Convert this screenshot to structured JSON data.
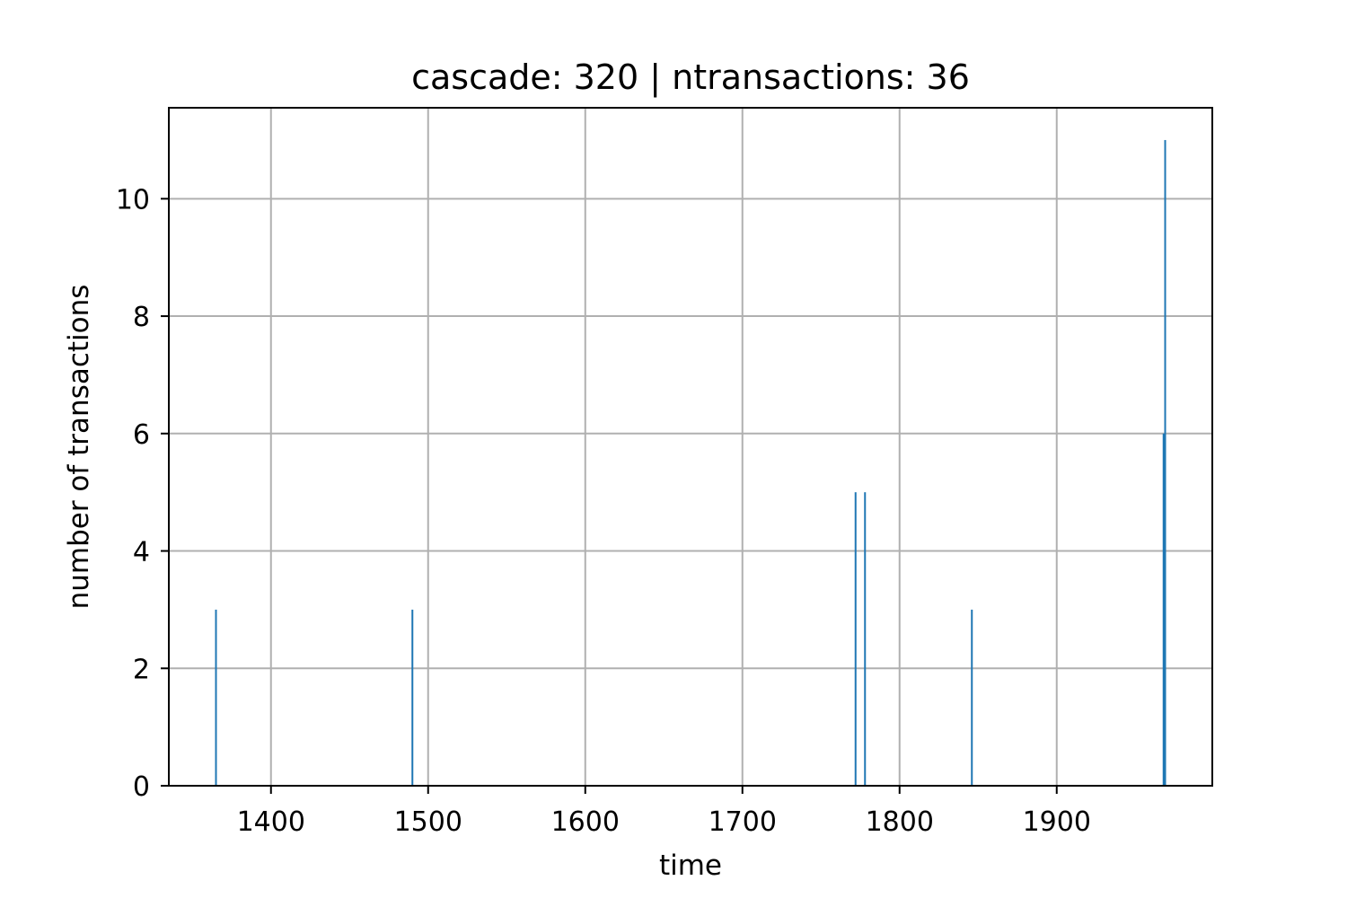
{
  "chart_data": {
    "type": "bar",
    "title": "cascade: 320 | ntransactions: 36",
    "xlabel": "time",
    "ylabel": "number of transactions",
    "xlim": [
      1335,
      1999
    ],
    "ylim": [
      0,
      11.55
    ],
    "xticks": [
      1400,
      1500,
      1600,
      1700,
      1800,
      1900
    ],
    "yticks": [
      0,
      2,
      4,
      6,
      8,
      10
    ],
    "grid": true,
    "bar_color": "#1f77b4",
    "points": [
      {
        "x": 1365,
        "y": 3
      },
      {
        "x": 1490,
        "y": 3
      },
      {
        "x": 1772,
        "y": 5
      },
      {
        "x": 1778,
        "y": 5
      },
      {
        "x": 1846,
        "y": 3
      },
      {
        "x": 1968,
        "y": 6
      },
      {
        "x": 1969,
        "y": 11
      }
    ]
  }
}
